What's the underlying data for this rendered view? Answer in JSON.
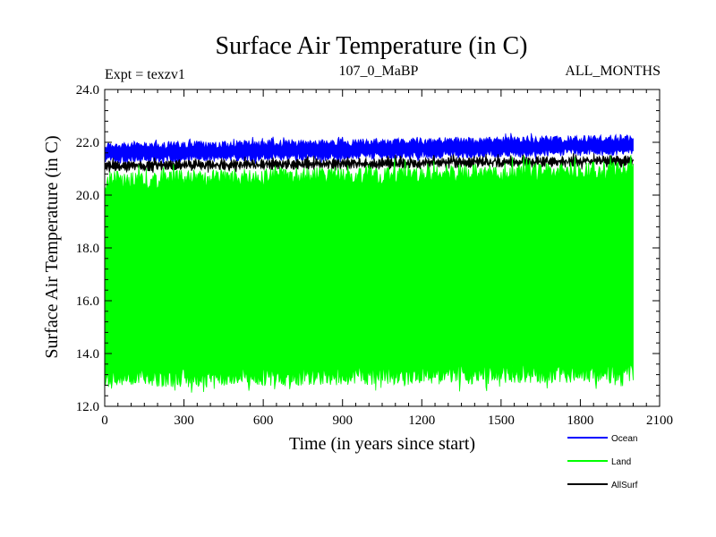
{
  "chart_data": {
    "type": "line",
    "title": "Surface Air Temperature (in C)",
    "subtitle_left": "Expt = texzv1",
    "subtitle_center": "107_0_MaBP",
    "subtitle_right": "ALL_MONTHS",
    "xlabel": "Time (in years since start)",
    "ylabel": "Surface Air Temperature (in C)",
    "xlim": [
      0,
      2100
    ],
    "ylim": [
      12.0,
      24.0
    ],
    "x_ticks": [
      0,
      300,
      600,
      900,
      1200,
      1500,
      1800,
      2100
    ],
    "x_tick_labels": [
      "0",
      "300",
      "600",
      "900",
      "1200",
      "1500",
      "1800",
      "2100"
    ],
    "y_ticks": [
      12,
      14,
      16,
      18,
      20,
      22,
      24
    ],
    "y_tick_labels": [
      "12.0",
      "14.0",
      "16.0",
      "18.0",
      "20.0",
      "22.0",
      "24.0"
    ],
    "x_data_range": [
      0,
      2000
    ],
    "series": [
      {
        "name": "Ocean",
        "color": "#0000ff",
        "min_start": 21.2,
        "min_end": 21.5,
        "max_start": 22.0,
        "max_end": 22.3,
        "draw_order": 1
      },
      {
        "name": "AllSurf",
        "color": "#000000",
        "min_start": 20.9,
        "min_end": 21.1,
        "max_start": 21.3,
        "max_end": 21.5,
        "draw_order": 2
      },
      {
        "name": "Land",
        "color": "#00ff00",
        "min_start": 12.7,
        "min_end": 12.9,
        "max_start": 20.9,
        "max_end": 21.3,
        "draw_order": 3
      }
    ],
    "legend": [
      {
        "name": "Ocean",
        "color": "#0000ff"
      },
      {
        "name": "Land",
        "color": "#00ff00"
      },
      {
        "name": "AllSurf",
        "color": "#000000"
      }
    ]
  }
}
